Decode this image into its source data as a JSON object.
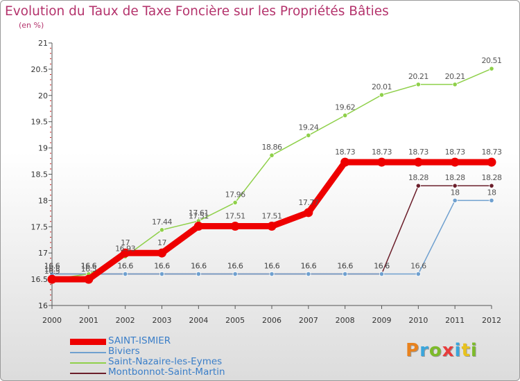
{
  "title": "Evolution du Taux de Taxe Foncière sur les Propriétés Bâties",
  "subtitle": "(en %)",
  "logo": [
    "P",
    "r",
    "o",
    "x",
    "i",
    "t",
    "i"
  ],
  "logo_colors": [
    "#e8821e",
    "#3aa6dc",
    "#7dbb2a",
    "#e83c3c",
    "#3aa6dc",
    "#e8c21e",
    "#7dbb2a"
  ],
  "chart_data": {
    "type": "line",
    "title": "Evolution du Taux de Taxe Foncière sur les Propriétés Bâties",
    "ylabel": "(en %)",
    "xlabel": "",
    "x": [
      "2000",
      "2001",
      "2002",
      "2003",
      "2004",
      "2005",
      "2006",
      "2007",
      "2008",
      "2009",
      "2010",
      "2011",
      "2012"
    ],
    "ylim": [
      16,
      21
    ],
    "yticks": [
      "16",
      "16.5",
      "17",
      "17.5",
      "18",
      "18.5",
      "19",
      "19.5",
      "20",
      "20.5",
      "21"
    ],
    "grid": false,
    "legend": "bottom-left",
    "series": [
      {
        "name": "Montbonnot-Saint-Martin",
        "color": "#6b1e2a",
        "values": [
          16.6,
          16.6,
          16.6,
          16.6,
          16.6,
          16.6,
          16.6,
          16.6,
          16.6,
          16.6,
          18.28,
          18.28,
          18.28
        ],
        "labels": [
          "16.6",
          "16.6",
          "16.6",
          "16.6",
          "16.6",
          "16.6",
          "16.6",
          "16.6",
          "16.6",
          "16.6",
          "18.28",
          "18.28",
          "18.28"
        ],
        "emphasis": false
      },
      {
        "name": "Biviers",
        "color": "#6fa0cf",
        "values": [
          16.6,
          16.6,
          16.6,
          16.6,
          16.6,
          16.6,
          16.6,
          16.6,
          16.6,
          16.6,
          16.6,
          18,
          18
        ],
        "labels": [
          "16.6",
          "16.6",
          "16.6",
          "16.6",
          "16.6",
          "16.6",
          "16.6",
          "16.6",
          "16.6",
          "16.6",
          "16.6",
          "18",
          "18"
        ],
        "emphasis": false
      },
      {
        "name": "Saint-Nazaire-les-Eymes",
        "color": "#8fd04a",
        "values": [
          16.5,
          16.6,
          16.93,
          17.44,
          17.61,
          17.96,
          18.86,
          19.24,
          19.62,
          20.01,
          20.21,
          20.21,
          20.51
        ],
        "labels": [
          "16.5",
          "16.6",
          "16.93",
          "17.44",
          "17.61",
          "17.96",
          "18.86",
          "19.24",
          "19.62",
          "20.01",
          "20.21",
          "20.21",
          "20.51"
        ],
        "emphasis": false
      },
      {
        "name": "SAINT-ISMIER",
        "color": "#ee0000",
        "values": [
          16.5,
          16.5,
          17,
          17,
          17.51,
          17.51,
          17.51,
          17.77,
          18.73,
          18.73,
          18.73,
          18.73,
          18.73
        ],
        "labels": [
          "16.5",
          "16.5",
          "17",
          "17",
          "17.51",
          "17.51",
          "17.51",
          "17.77",
          "18.73",
          "18.73",
          "18.73",
          "18.73",
          "18.73"
        ],
        "emphasis": true
      }
    ],
    "legend_order": [
      "SAINT-ISMIER",
      "Biviers",
      "Saint-Nazaire-les-Eymes",
      "Montbonnot-Saint-Martin"
    ]
  }
}
